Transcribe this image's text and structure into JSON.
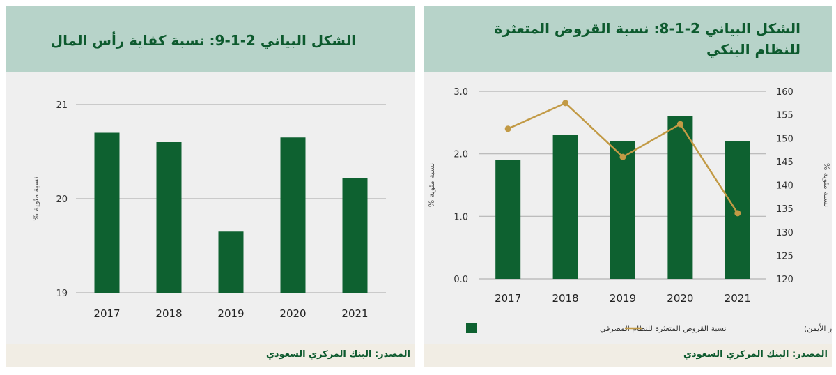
{
  "left_chart": {
    "title": "الشكل البياني 2-1-9: نسبة كفاية رأس المال",
    "source": "المصدر: البنك المركزي السعودي"
  },
  "right_chart": {
    "title": "الشكل البياني 2-1-8: نسبة القروض المتعثرة للنظام البنكي",
    "source": "المصدر: البنك المركزي السعودي"
  },
  "chart_data": [
    {
      "type": "bar",
      "title": "الشكل البياني 2-1-9: نسبة كفاية رأس المال",
      "categories": [
        "2017",
        "2018",
        "2019",
        "2020",
        "2021"
      ],
      "values": [
        20.7,
        20.6,
        19.65,
        20.65,
        20.22
      ],
      "ylabel": "نسبة مئوية %",
      "ylim": [
        19,
        21
      ],
      "yticks": [
        "19",
        "20",
        "21"
      ],
      "color": "#0e6130"
    },
    {
      "type": "bar",
      "title": "الشكل البياني 2-1-8: نسبة القروض المتعثرة للنظام البنكي",
      "categories": [
        "2017",
        "2018",
        "2019",
        "2020",
        "2021"
      ],
      "series": [
        {
          "name": "نسبة القروض المتعثرة للنظام المصرفي",
          "type": "bar",
          "axis": "left",
          "values": [
            1.9,
            2.3,
            2.2,
            2.6,
            2.2
          ],
          "color": "#0e6130"
        },
        {
          "name": "نسبة تغطية القروض المتعثرة (المحور الأيمن)",
          "type": "line",
          "axis": "right",
          "values": [
            152,
            157.5,
            146,
            153,
            134
          ],
          "color": "#c29a45"
        }
      ],
      "ylabel_left": "نسبة مئوية %",
      "ylabel_right": "نسبة مئوية %",
      "ylim_left": [
        0,
        3
      ],
      "ylim_right": [
        120,
        160
      ],
      "yticks_left": [
        "0.0",
        "1.0",
        "2.0",
        "3.0"
      ],
      "yticks_right": [
        "120",
        "125",
        "130",
        "135",
        "140",
        "145",
        "150",
        "155",
        "160"
      ]
    }
  ]
}
